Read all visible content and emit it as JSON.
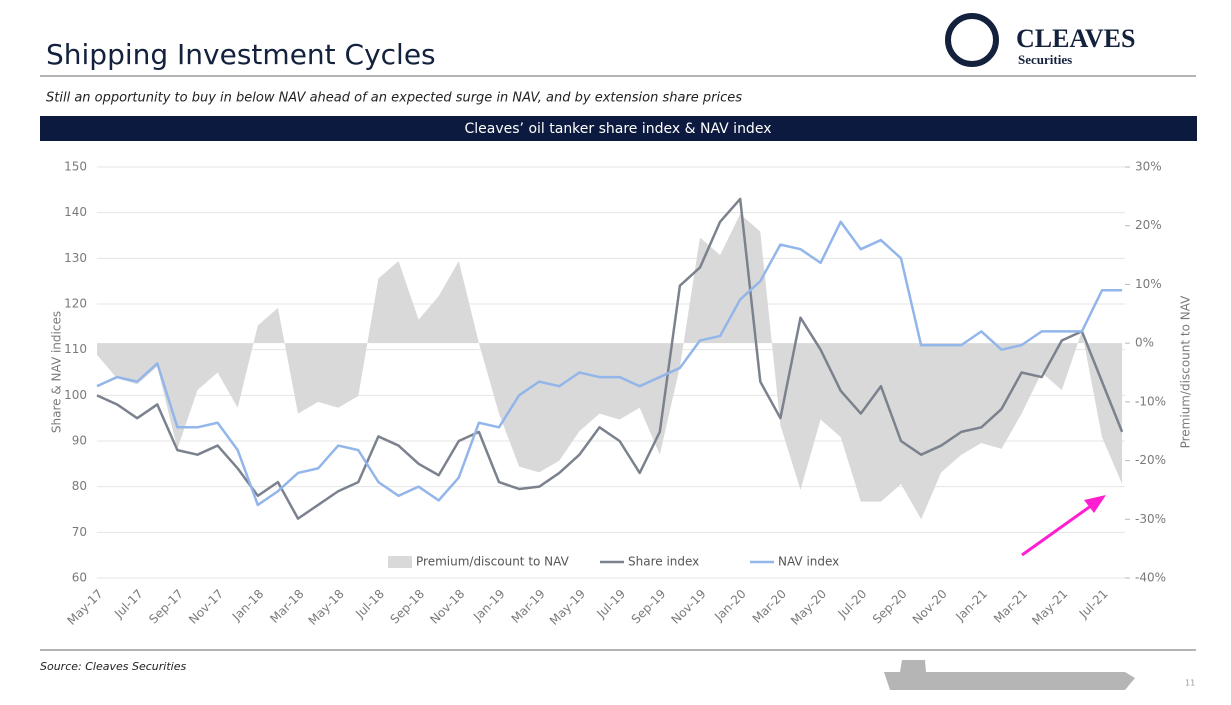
{
  "header": {
    "title": "Shipping Investment Cycles",
    "logo_name": "CLEAVES",
    "logo_sub": "Securities",
    "subtitle": "Still an opportunity to buy in below NAV ahead of an expected surge in NAV, and by extension share prices"
  },
  "chart_data": {
    "type": "line",
    "title": "Cleaves’ oil tanker share index & NAV index",
    "categories": [
      "May-17",
      null,
      "Jul-17",
      null,
      "Sep-17",
      null,
      "Nov-17",
      null,
      "Jan-18",
      null,
      "Mar-18",
      null,
      "May-18",
      null,
      "Jul-18",
      null,
      "Sep-18",
      null,
      "Nov-18",
      null,
      "Jan-19",
      null,
      "Mar-19",
      null,
      "May-19",
      null,
      "Jul-19",
      null,
      "Sep-19",
      null,
      "Nov-19",
      null,
      "Jan-20",
      null,
      "Mar-20",
      null,
      "May-20",
      null,
      "Jul-20",
      null,
      "Sep-20",
      null,
      "Nov-20",
      null,
      "Jan-21",
      null,
      "Mar-21",
      null,
      "May-21",
      null,
      "Jul-21",
      null
    ],
    "ylabel": "Share & NAV indices",
    "y2label": "Premium/discount to NAV",
    "ylim": [
      60,
      150
    ],
    "yticks": [
      60,
      70,
      80,
      90,
      100,
      110,
      120,
      130,
      140,
      150
    ],
    "y2lim": [
      -40,
      30
    ],
    "y2ticks": [
      {
        "value": -40,
        "label": "-40%"
      },
      {
        "value": -30,
        "label": "-30%"
      },
      {
        "value": -20,
        "label": "-20%"
      },
      {
        "value": -10,
        "label": "-10%"
      },
      {
        "value": 0,
        "label": "0%"
      },
      {
        "value": 10,
        "label": "10%"
      },
      {
        "value": 20,
        "label": "20%"
      },
      {
        "value": 30,
        "label": "30%"
      }
    ],
    "grid": true,
    "series": [
      {
        "name": "Premium/discount to NAV",
        "type": "area",
        "axis": "y2",
        "color": "#d9d9d9",
        "values": [
          -2,
          -6,
          -7,
          -4,
          -18,
          -8,
          -5,
          -11,
          3,
          6,
          -12,
          -10,
          -11,
          -9,
          11,
          14,
          4,
          8,
          14,
          0,
          -12,
          -21,
          -22,
          -20,
          -15,
          -12,
          -13,
          -11,
          -19,
          -4,
          18,
          15,
          22,
          19,
          -14,
          -25,
          -13,
          -16,
          -27,
          -27,
          -24,
          -30,
          -22,
          -19,
          -17,
          -18,
          -12,
          -5,
          -8,
          2,
          -16,
          -24
        ]
      },
      {
        "name": "Share index",
        "type": "line",
        "color": "#7b828e",
        "values": [
          100,
          98,
          95,
          98,
          88,
          87,
          89,
          84,
          78,
          81,
          73,
          76,
          79,
          81,
          91,
          89,
          85,
          82.5,
          90,
          92,
          81,
          79.5,
          80,
          83,
          87,
          93,
          90,
          83,
          92,
          124,
          128,
          138,
          143,
          103,
          95,
          117,
          110,
          101,
          96,
          102,
          90,
          87,
          89,
          92,
          93,
          97,
          105,
          104,
          112,
          114,
          103,
          92
        ]
      },
      {
        "name": "NAV index",
        "type": "line",
        "color": "#93b6ea",
        "values": [
          102,
          104,
          103,
          107,
          93,
          93,
          94,
          88,
          76,
          79,
          83,
          84,
          89,
          88,
          81,
          78,
          80,
          77,
          82,
          94,
          93,
          100,
          103,
          102,
          105,
          104,
          104,
          102,
          104,
          106,
          112,
          113,
          121,
          125,
          133,
          132,
          129,
          138,
          132,
          134,
          130,
          111,
          111,
          111,
          114,
          110,
          111,
          114,
          114,
          114,
          123,
          123
        ]
      }
    ]
  },
  "footer": {
    "source": "Source: Cleaves Securities",
    "page": "11"
  }
}
